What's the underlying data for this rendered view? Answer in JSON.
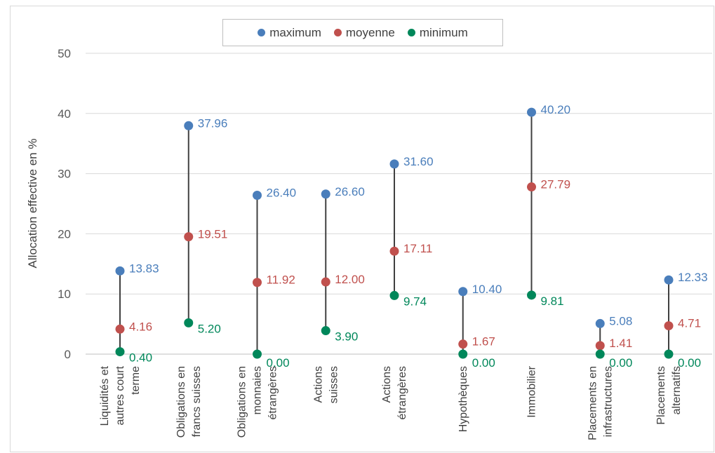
{
  "chart_data": {
    "type": "scatter",
    "ylabel": "Allocation effective en %",
    "ylim": [
      0,
      50
    ],
    "yticks": [
      "0",
      "10",
      "20",
      "30",
      "40",
      "50"
    ],
    "grid": true,
    "legend_position": "top",
    "categories": [
      [
        "Liquidités et",
        "autres court",
        "terme"
      ],
      [
        "Obligations en",
        "francs suisses"
      ],
      [
        "Obligations en",
        "monnaies",
        "étrangères"
      ],
      [
        "Actions",
        "suisses"
      ],
      [
        "Actions",
        "étrangères"
      ],
      [
        "Hypothèques"
      ],
      [
        "Immobilier"
      ],
      [
        "Placements en",
        "infrastructures"
      ],
      [
        "Placements",
        "alternatifs"
      ]
    ],
    "series": [
      {
        "name": "maximum",
        "color": "#4a7ebb",
        "values": [
          13.83,
          37.96,
          26.4,
          26.6,
          31.6,
          10.4,
          40.2,
          5.08,
          12.33
        ],
        "labels": [
          "13.83",
          "37.96",
          "26.40",
          "26.60",
          "31.60",
          "10.40",
          "40.20",
          "5.08",
          "12.33"
        ]
      },
      {
        "name": "moyenne",
        "color": "#c0504d",
        "values": [
          4.16,
          19.51,
          11.92,
          12.0,
          17.11,
          1.67,
          27.79,
          1.41,
          4.71
        ],
        "labels": [
          "4.16",
          "19.51",
          "11.92",
          "12.00",
          "17.11",
          "1.67",
          "27.79",
          "1.41",
          "4.71"
        ]
      },
      {
        "name": "minimum",
        "color": "#00875a",
        "values": [
          0.4,
          5.2,
          0.0,
          3.9,
          9.74,
          0.0,
          9.81,
          0.0,
          0.0
        ],
        "labels": [
          "0.40",
          "5.20",
          "0.00",
          "3.90",
          "9.74",
          "0.00",
          "9.81",
          "0.00",
          "0.00"
        ]
      }
    ]
  }
}
